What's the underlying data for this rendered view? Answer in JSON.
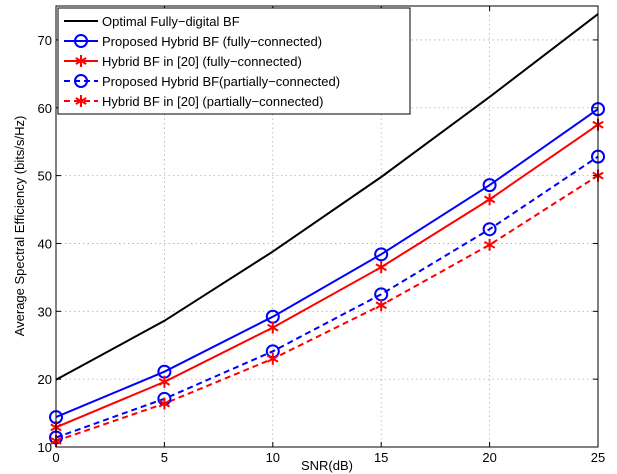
{
  "chart_data": {
    "type": "line",
    "title": "",
    "xlabel": "SNR(dB)",
    "ylabel": "Average Spectral Efficiency (bits/s/Hz)",
    "x": [
      0,
      5,
      10,
      15,
      20,
      25
    ],
    "xlim": [
      0,
      25
    ],
    "ylim": [
      10,
      75
    ],
    "xticks": [
      0,
      5,
      10,
      15,
      20,
      25
    ],
    "yticks": [
      10,
      20,
      30,
      40,
      50,
      60,
      70
    ],
    "grid": true,
    "legend_position": "top-left",
    "series": [
      {
        "name": "Optimal Fully−digital BF",
        "color": "#000000",
        "dash": "solid",
        "marker": "none",
        "values": [
          19.9,
          28.6,
          38.8,
          49.8,
          61.6,
          73.8
        ]
      },
      {
        "name": "Proposed Hybrid BF (fully−connected)",
        "color": "#0000ff",
        "dash": "solid",
        "marker": "circle",
        "values": [
          14.4,
          21.1,
          29.2,
          38.4,
          48.6,
          59.8
        ]
      },
      {
        "name": "Hybrid BF in [20] (fully−connected)",
        "color": "#ff0000",
        "dash": "solid",
        "marker": "asterisk",
        "values": [
          12.9,
          19.6,
          27.6,
          36.5,
          46.5,
          57.5
        ]
      },
      {
        "name": "Proposed Hybrid BF(partially−connected)",
        "color": "#0000ff",
        "dash": "dashed",
        "marker": "circle",
        "values": [
          11.4,
          17.1,
          24.1,
          32.5,
          42.1,
          52.8
        ]
      },
      {
        "name": "Hybrid BF in [20] (partially−connected)",
        "color": "#ff0000",
        "dash": "dashed",
        "marker": "asterisk",
        "values": [
          10.9,
          16.4,
          23.0,
          30.9,
          39.8,
          50.0
        ]
      }
    ]
  }
}
